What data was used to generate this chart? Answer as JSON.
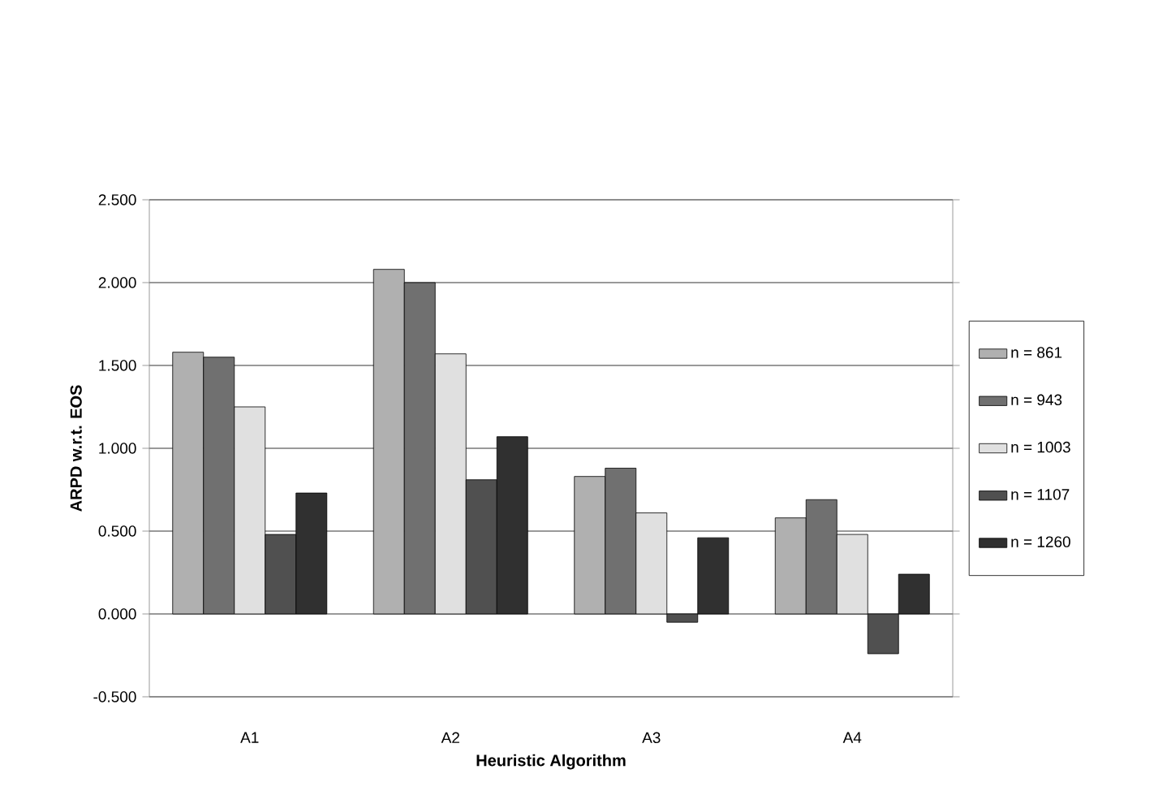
{
  "chart_data": {
    "type": "bar",
    "xlabel": "Heuristic Algorithm",
    "ylabel": "ARPD w.r.t. EOS",
    "categories": [
      "A1",
      "A2",
      "A3",
      "A4"
    ],
    "series": [
      {
        "name": "n = 861",
        "color": "#b0b0b0",
        "values": [
          1.58,
          2.08,
          0.83,
          0.58
        ]
      },
      {
        "name": "n = 943",
        "color": "#707070",
        "values": [
          1.55,
          2.0,
          0.88,
          0.69
        ]
      },
      {
        "name": "n = 1003",
        "color": "#e0e0e0",
        "values": [
          1.25,
          1.57,
          0.61,
          0.48
        ]
      },
      {
        "name": "n = 1107",
        "color": "#505050",
        "values": [
          0.48,
          0.81,
          -0.05,
          -0.24
        ]
      },
      {
        "name": "n = 1260",
        "color": "#303030",
        "values": [
          0.73,
          1.07,
          0.46,
          0.24
        ]
      }
    ],
    "ylim": [
      -0.5,
      2.5
    ],
    "yticks": [
      {
        "value": -0.5,
        "label": "-0.500"
      },
      {
        "value": 0,
        "label": "0.000"
      },
      {
        "value": 0.5,
        "label": "0.500"
      },
      {
        "value": 1,
        "label": "1.000"
      },
      {
        "value": 1.5,
        "label": "1.500"
      },
      {
        "value": 2,
        "label": "2.000"
      },
      {
        "value": 2.5,
        "label": "2.500"
      }
    ],
    "grid": "y",
    "legend": "right"
  }
}
